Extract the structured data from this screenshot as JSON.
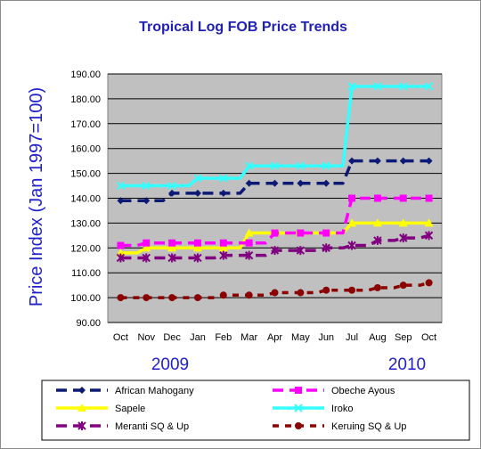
{
  "chart_data": {
    "type": "line",
    "title": "Tropical Log FOB Price Trends",
    "ylabel": "Price Index (Jan 1997=100)",
    "xlabel": "",
    "categories": [
      "Oct",
      "Nov",
      "Dec",
      "Jan",
      "Feb",
      "Mar",
      "Apr",
      "May",
      "Jun",
      "Jul",
      "Aug",
      "Sep",
      "Oct"
    ],
    "year_labels": [
      "2009",
      "2010"
    ],
    "ylim": [
      90,
      190
    ],
    "yticks": [
      "90.00",
      "100.00",
      "110.00",
      "120.00",
      "130.00",
      "140.00",
      "150.00",
      "160.00",
      "170.00",
      "180.00",
      "190.00"
    ],
    "grid": true,
    "legend_position": "bottom",
    "series": [
      {
        "name": "African Mahogany",
        "color": "#0c1a75",
        "marker": "diamond",
        "dash": "12,7",
        "values": [
          139,
          139,
          142,
          142,
          142,
          146,
          146,
          146,
          146,
          155,
          155,
          155,
          155
        ]
      },
      {
        "name": "Obeche Ayous",
        "color": "#ff00ff",
        "marker": "square",
        "dash": "12,7",
        "values": [
          121,
          122,
          122,
          122,
          122,
          122,
          126,
          126,
          126,
          140,
          140,
          140,
          140
        ]
      },
      {
        "name": "Sapele",
        "color": "#ffff00",
        "marker": "triangle",
        "dash": "",
        "values": [
          118,
          120,
          120,
          120,
          120,
          126,
          126,
          126,
          126,
          130,
          130,
          130,
          130
        ]
      },
      {
        "name": "Iroko",
        "color": "#33ffff",
        "marker": "x",
        "dash": "",
        "values": [
          145,
          145,
          145,
          148,
          148,
          153,
          153,
          153,
          153,
          185,
          185,
          185,
          185
        ]
      },
      {
        "name": "Meranti SQ & Up",
        "color": "#800080",
        "marker": "star",
        "dash": "12,7",
        "values": [
          116,
          116,
          116,
          116,
          117,
          117,
          119,
          119,
          120,
          121,
          123,
          124,
          125
        ]
      },
      {
        "name": "Keruing SQ & Up",
        "color": "#8b0000",
        "marker": "circle",
        "dash": "7,7",
        "values": [
          100,
          100,
          100,
          100,
          101,
          101,
          102,
          102,
          103,
          103,
          104,
          105,
          106
        ]
      }
    ]
  }
}
